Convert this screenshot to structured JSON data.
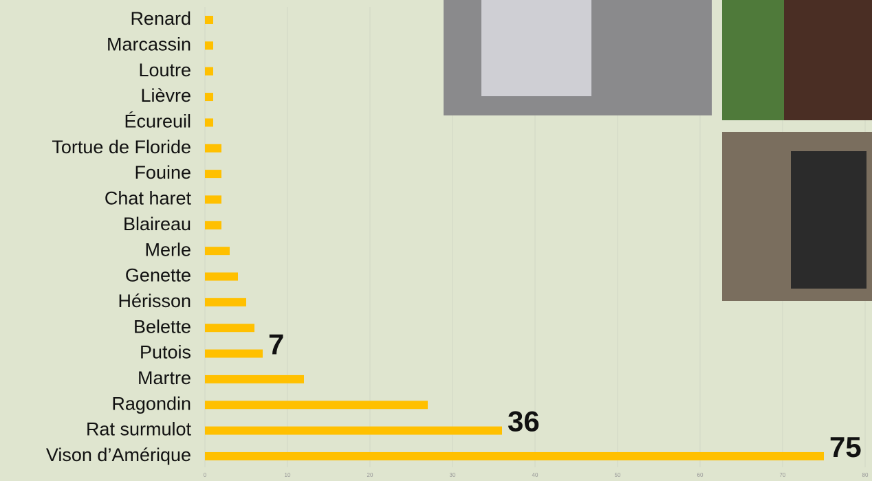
{
  "chart_data": {
    "type": "bar",
    "orientation": "horizontal",
    "categories": [
      "Renard",
      "Marcassin",
      "Loutre",
      "Lièvre",
      "Écureuil",
      "Tortue de Floride",
      "Fouine",
      "Chat haret",
      "Blaireau",
      "Merle",
      "Genette",
      "Hérisson",
      "Belette",
      "Putois",
      "Martre",
      "Ragondin",
      "Rat surmulot",
      "Vison d’Amérique"
    ],
    "values": [
      1,
      1,
      1,
      1,
      1,
      2,
      2,
      2,
      2,
      3,
      4,
      5,
      6,
      7,
      12,
      27,
      36,
      75
    ],
    "value_labels": [
      null,
      null,
      null,
      null,
      null,
      null,
      null,
      null,
      null,
      null,
      null,
      null,
      null,
      "7",
      null,
      null,
      "36",
      "75"
    ],
    "color": "#ffc000",
    "xlim": [
      0,
      80
    ],
    "xticks": [
      0,
      10,
      20,
      30,
      40,
      50,
      60,
      70,
      80
    ],
    "grid": true
  }
}
